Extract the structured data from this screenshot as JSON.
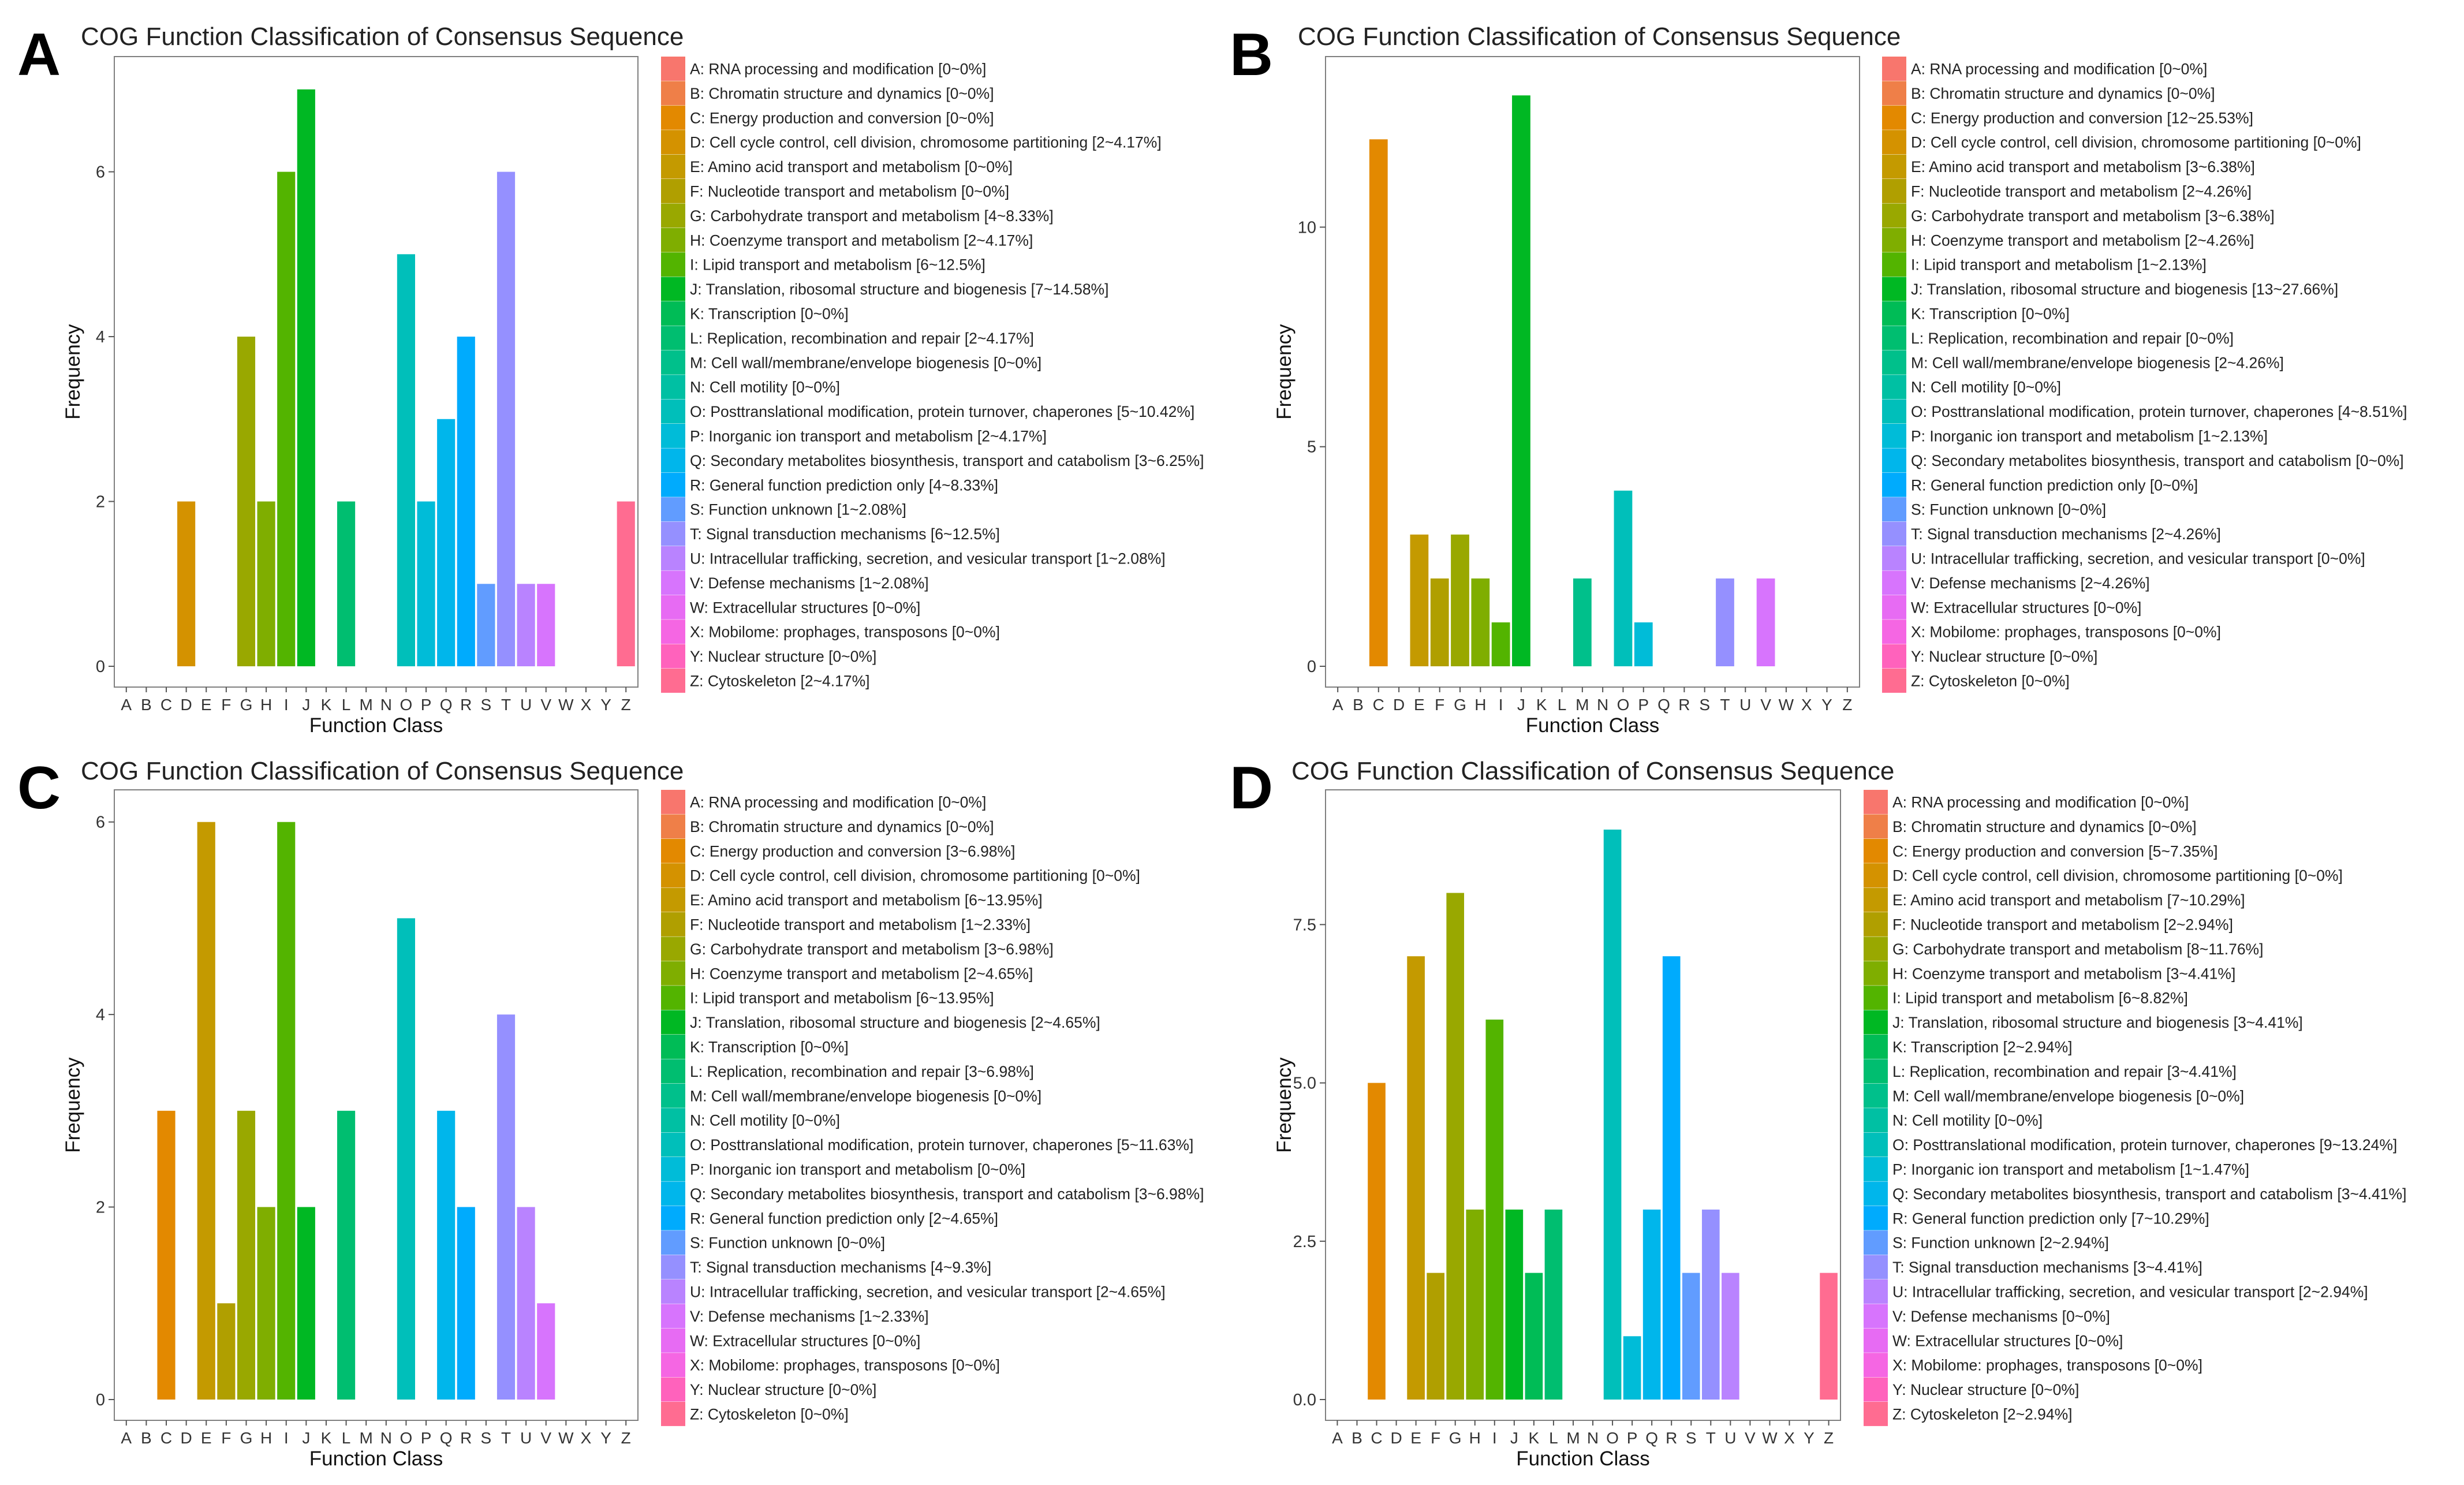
{
  "panels": [
    {
      "letter": "A",
      "chart_data": {
        "type": "bar",
        "title": "COG Function Classification of Consensus Sequence",
        "xlabel": "Function Class",
        "ylabel": "Frequency",
        "ylim": [
          0,
          7.3
        ],
        "yticks": [
          0,
          2,
          4,
          6
        ],
        "ytick_labels": [
          "0",
          "2",
          "4",
          "6"
        ],
        "categories": [
          "A",
          "B",
          "C",
          "D",
          "E",
          "F",
          "G",
          "H",
          "I",
          "J",
          "K",
          "L",
          "M",
          "N",
          "O",
          "P",
          "Q",
          "R",
          "S",
          "T",
          "U",
          "V",
          "W",
          "X",
          "Y",
          "Z"
        ],
        "values": [
          0,
          0,
          0,
          2,
          0,
          0,
          4,
          2,
          6,
          7,
          0,
          2,
          0,
          0,
          5,
          2,
          3,
          4,
          1,
          6,
          1,
          1,
          0,
          0,
          0,
          2
        ],
        "legend": [
          "A: RNA processing and modification [0~0%]",
          "B: Chromatin structure and dynamics [0~0%]",
          "C: Energy production and conversion [0~0%]",
          "D: Cell cycle control, cell division, chromosome partitioning [2~4.17%]",
          "E: Amino acid transport and metabolism [0~0%]",
          "F: Nucleotide transport and metabolism [0~0%]",
          "G: Carbohydrate transport and metabolism [4~8.33%]",
          "H: Coenzyme transport and metabolism [2~4.17%]",
          "I: Lipid transport and metabolism [6~12.5%]",
          "J: Translation, ribosomal structure and biogenesis [7~14.58%]",
          "K: Transcription [0~0%]",
          "L: Replication, recombination and repair [2~4.17%]",
          "M: Cell wall/membrane/envelope biogenesis [0~0%]",
          "N: Cell motility [0~0%]",
          "O: Posttranslational modification, protein turnover, chaperones [5~10.42%]",
          "P: Inorganic ion transport and metabolism [2~4.17%]",
          "Q: Secondary metabolites biosynthesis, transport and catabolism [3~6.25%]",
          "R: General function prediction only [4~8.33%]",
          "S: Function unknown [1~2.08%]",
          "T: Signal transduction mechanisms [6~12.5%]",
          "U: Intracellular trafficking, secretion, and vesicular transport [1~2.08%]",
          "V: Defense mechanisms [1~2.08%]",
          "W: Extracellular structures [0~0%]",
          "X: Mobilome: prophages, transposons [0~0%]",
          "Y: Nuclear structure [0~0%]",
          "Z: Cytoskeleton [2~4.17%]"
        ]
      }
    },
    {
      "letter": "B",
      "chart_data": {
        "type": "bar",
        "title": "COG Function Classification of Consensus Sequence",
        "xlabel": "Function Class",
        "ylabel": "Frequency",
        "ylim": [
          0,
          13.7
        ],
        "yticks": [
          0,
          5,
          10
        ],
        "ytick_labels": [
          "0",
          "5",
          "10"
        ],
        "categories": [
          "A",
          "B",
          "C",
          "D",
          "E",
          "F",
          "G",
          "H",
          "I",
          "J",
          "K",
          "L",
          "M",
          "N",
          "O",
          "P",
          "Q",
          "R",
          "S",
          "T",
          "U",
          "V",
          "W",
          "X",
          "Y",
          "Z"
        ],
        "values": [
          0,
          0,
          12,
          0,
          3,
          2,
          3,
          2,
          1,
          13,
          0,
          0,
          2,
          0,
          4,
          1,
          0,
          0,
          0,
          2,
          0,
          2,
          0,
          0,
          0,
          0
        ],
        "legend": [
          "A: RNA processing and modification [0~0%]",
          "B: Chromatin structure and dynamics [0~0%]",
          "C: Energy production and conversion [12~25.53%]",
          "D: Cell cycle control, cell division, chromosome partitioning [0~0%]",
          "E: Amino acid transport and metabolism [3~6.38%]",
          "F: Nucleotide transport and metabolism [2~4.26%]",
          "G: Carbohydrate transport and metabolism [3~6.38%]",
          "H: Coenzyme transport and metabolism [2~4.26%]",
          "I: Lipid transport and metabolism [1~2.13%]",
          "J: Translation, ribosomal structure and biogenesis [13~27.66%]",
          "K: Transcription [0~0%]",
          "L: Replication, recombination and repair [0~0%]",
          "M: Cell wall/membrane/envelope biogenesis [2~4.26%]",
          "N: Cell motility [0~0%]",
          "O: Posttranslational modification, protein turnover, chaperones [4~8.51%]",
          "P: Inorganic ion transport and metabolism [1~2.13%]",
          "Q: Secondary metabolites biosynthesis, transport and catabolism [0~0%]",
          "R: General function prediction only [0~0%]",
          "S: Function unknown [0~0%]",
          "T: Signal transduction mechanisms [2~4.26%]",
          "U: Intracellular trafficking, secretion, and vesicular transport [0~0%]",
          "V: Defense mechanisms [2~4.26%]",
          "W: Extracellular structures [0~0%]",
          "X: Mobilome: prophages, transposons [0~0%]",
          "Y: Nuclear structure [0~0%]",
          "Z: Cytoskeleton [0~0%]"
        ]
      }
    },
    {
      "letter": "C",
      "chart_data": {
        "type": "bar",
        "title": "COG Function Classification of Consensus Sequence",
        "xlabel": "Function Class",
        "ylabel": "Frequency",
        "ylim": [
          0,
          6.25
        ],
        "yticks": [
          0,
          2,
          4,
          6
        ],
        "ytick_labels": [
          "0",
          "2",
          "4",
          "6"
        ],
        "categories": [
          "A",
          "B",
          "C",
          "D",
          "E",
          "F",
          "G",
          "H",
          "I",
          "J",
          "K",
          "L",
          "M",
          "N",
          "O",
          "P",
          "Q",
          "R",
          "S",
          "T",
          "U",
          "V",
          "W",
          "X",
          "Y",
          "Z"
        ],
        "values": [
          0,
          0,
          3,
          0,
          6,
          1,
          3,
          2,
          6,
          2,
          0,
          3,
          0,
          0,
          5,
          0,
          3,
          2,
          0,
          4,
          2,
          1,
          0,
          0,
          0,
          0
        ],
        "legend": [
          "A: RNA processing and modification [0~0%]",
          "B: Chromatin structure and dynamics [0~0%]",
          "C: Energy production and conversion [3~6.98%]",
          "D: Cell cycle control, cell division, chromosome partitioning [0~0%]",
          "E: Amino acid transport and metabolism [6~13.95%]",
          "F: Nucleotide transport and metabolism [1~2.33%]",
          "G: Carbohydrate transport and metabolism [3~6.98%]",
          "H: Coenzyme transport and metabolism [2~4.65%]",
          "I: Lipid transport and metabolism [6~13.95%]",
          "J: Translation, ribosomal structure and biogenesis [2~4.65%]",
          "K: Transcription [0~0%]",
          "L: Replication, recombination and repair [3~6.98%]",
          "M: Cell wall/membrane/envelope biogenesis [0~0%]",
          "N: Cell motility [0~0%]",
          "O: Posttranslational modification, protein turnover, chaperones [5~11.63%]",
          "P: Inorganic ion transport and metabolism [0~0%]",
          "Q: Secondary metabolites biosynthesis, transport and catabolism [3~6.98%]",
          "R: General function prediction only [2~4.65%]",
          "S: Function unknown [0~0%]",
          "T: Signal transduction mechanisms [4~9.3%]",
          "U: Intracellular trafficking, secretion, and vesicular transport [2~4.65%]",
          "V: Defense mechanisms [1~2.33%]",
          "W: Extracellular structures [0~0%]",
          "X: Mobilome: prophages, transposons [0~0%]",
          "Y: Nuclear structure [0~0%]",
          "Z: Cytoskeleton [0~0%]"
        ]
      }
    },
    {
      "letter": "D",
      "chart_data": {
        "type": "bar",
        "title": "COG Function Classification of Consensus Sequence",
        "xlabel": "Function Class",
        "ylabel": "Frequency",
        "ylim": [
          0,
          9.5
        ],
        "yticks": [
          0,
          2.5,
          5,
          7.5
        ],
        "ytick_labels": [
          "0.0",
          "2.5",
          "5.0",
          "7.5"
        ],
        "categories": [
          "A",
          "B",
          "C",
          "D",
          "E",
          "F",
          "G",
          "H",
          "I",
          "J",
          "K",
          "L",
          "M",
          "N",
          "O",
          "P",
          "Q",
          "R",
          "S",
          "T",
          "U",
          "V",
          "W",
          "X",
          "Y",
          "Z"
        ],
        "values": [
          0,
          0,
          5,
          0,
          7,
          2,
          8,
          3,
          6,
          3,
          2,
          3,
          0,
          0,
          9,
          1,
          3,
          7,
          2,
          3,
          2,
          0,
          0,
          0,
          0,
          2
        ],
        "legend": [
          "A: RNA processing and modification [0~0%]",
          "B: Chromatin structure and dynamics [0~0%]",
          "C: Energy production and conversion [5~7.35%]",
          "D: Cell cycle control, cell division, chromosome partitioning [0~0%]",
          "E: Amino acid transport and metabolism [7~10.29%]",
          "F: Nucleotide transport and metabolism [2~2.94%]",
          "G: Carbohydrate transport and metabolism [8~11.76%]",
          "H: Coenzyme transport and metabolism [3~4.41%]",
          "I: Lipid transport and metabolism [6~8.82%]",
          "J: Translation, ribosomal structure and biogenesis [3~4.41%]",
          "K: Transcription [2~2.94%]",
          "L: Replication, recombination and repair [3~4.41%]",
          "M: Cell wall/membrane/envelope biogenesis [0~0%]",
          "N: Cell motility [0~0%]",
          "O: Posttranslational modification, protein turnover, chaperones [9~13.24%]",
          "P: Inorganic ion transport and metabolism [1~1.47%]",
          "Q: Secondary metabolites biosynthesis, transport and catabolism [3~4.41%]",
          "R: General function prediction only [7~10.29%]",
          "S: Function unknown [2~2.94%]",
          "T: Signal transduction mechanisms [3~4.41%]",
          "U: Intracellular trafficking, secretion, and vesicular transport [2~2.94%]",
          "V: Defense mechanisms [0~0%]",
          "W: Extracellular structures [0~0%]",
          "X: Mobilome: prophages, transposons [0~0%]",
          "Y: Nuclear structure [0~0%]",
          "Z: Cytoskeleton [2~2.94%]"
        ]
      }
    }
  ],
  "category_colors": [
    "#F8766D",
    "#EF7F48",
    "#E38900",
    "#D49200",
    "#C49A00",
    "#B09F00",
    "#99A800",
    "#7FAE00",
    "#53B400",
    "#00B823",
    "#00BC56",
    "#00BE70",
    "#00C08B",
    "#00C0A3",
    "#00BFBA",
    "#00BCD8",
    "#00B6EB",
    "#00ABFD",
    "#619CFF",
    "#9590FF",
    "#B983FF",
    "#D774FD",
    "#E76BF3",
    "#F566E3",
    "#FF62BC",
    "#FF6C91"
  ]
}
